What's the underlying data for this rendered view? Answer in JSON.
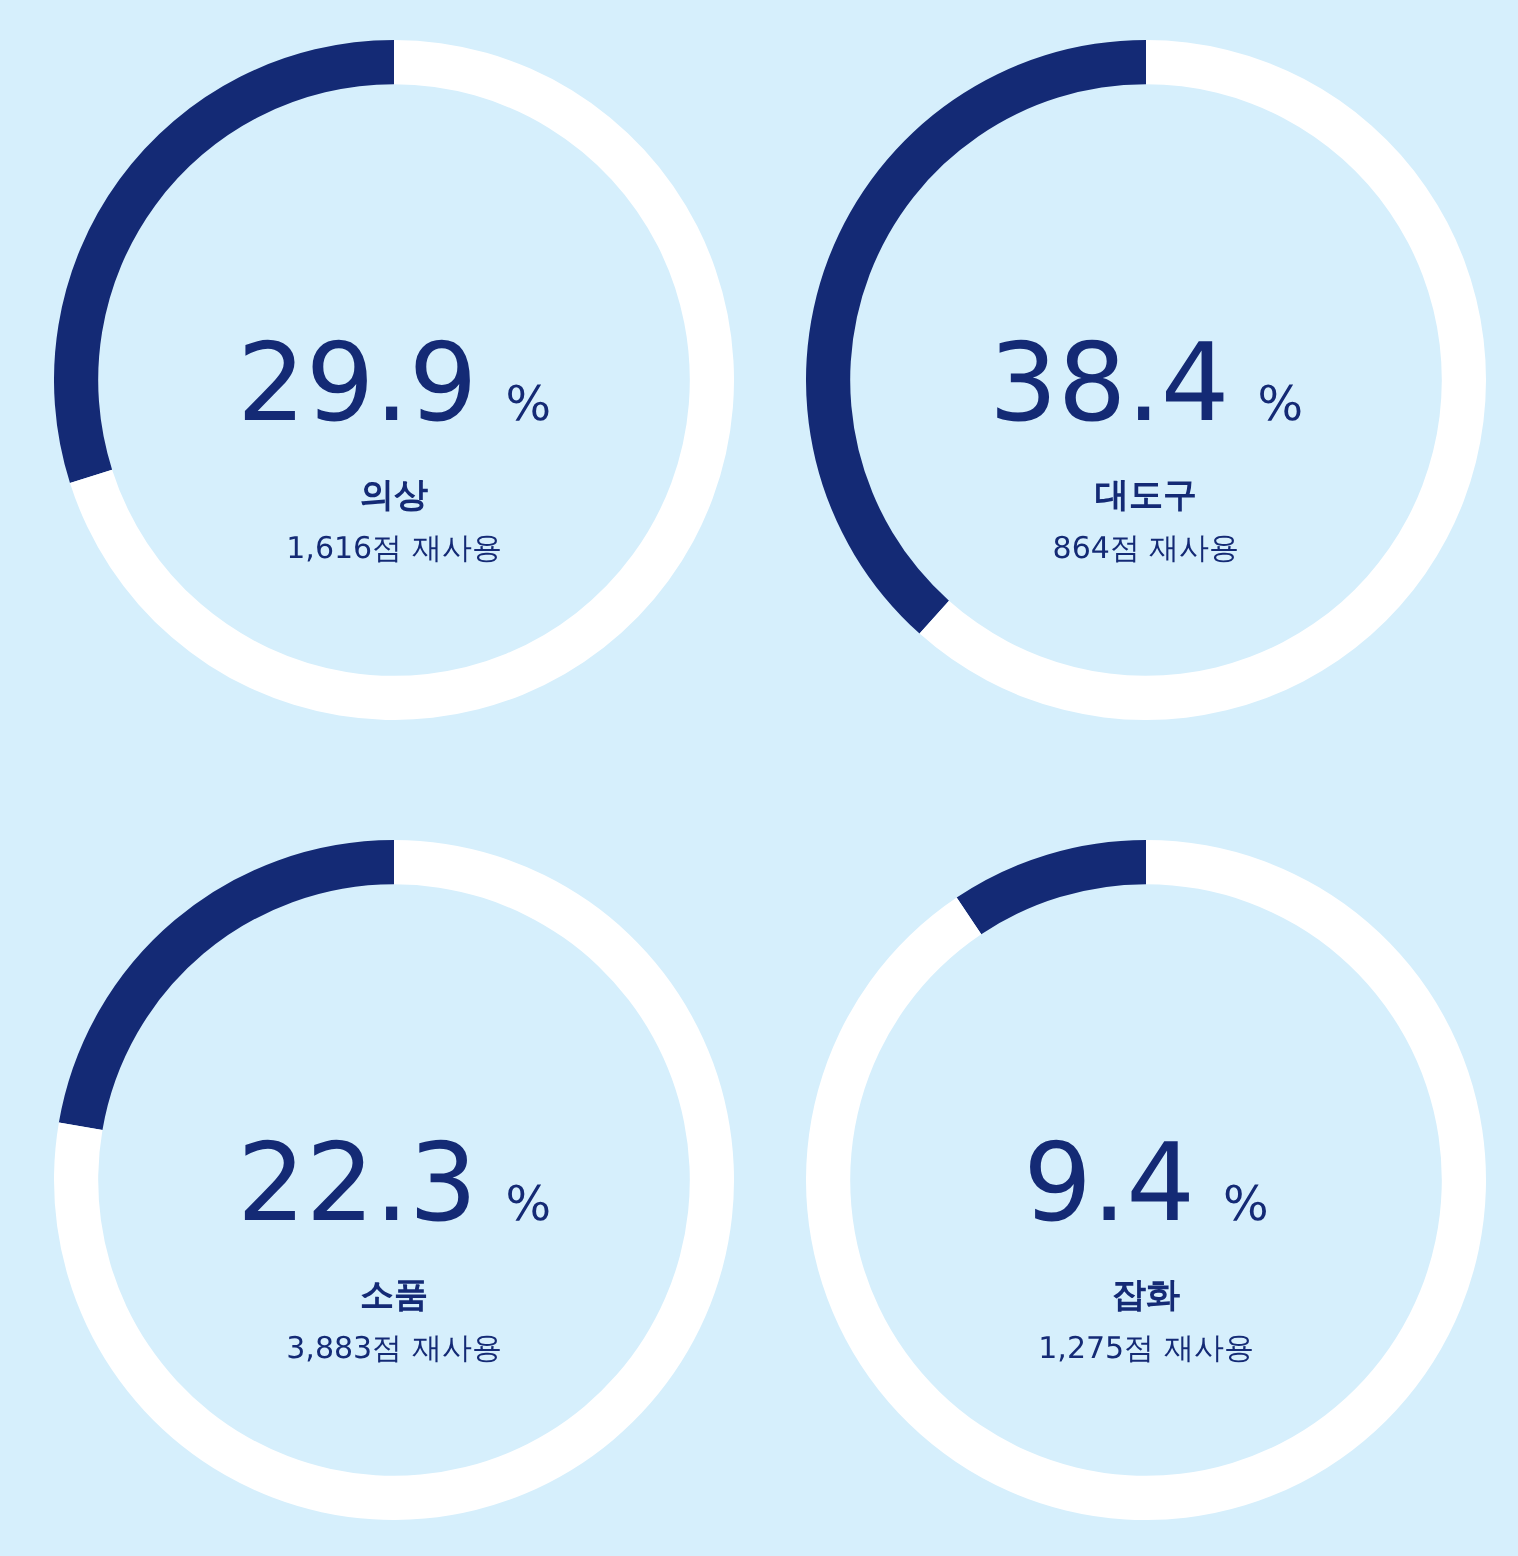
{
  "chart_data": [
    {
      "type": "donut",
      "title": "의상",
      "categories": [
        null,
        null
      ],
      "values": [
        29.9,
        70.1
      ],
      "colors": [
        "#142a75",
        "#ffffff"
      ],
      "annotations": [
        "29.9 %",
        "1,616점 재사용"
      ]
    },
    {
      "type": "donut",
      "title": "대도구",
      "categories": [
        null,
        null
      ],
      "values": [
        38.4,
        61.6
      ],
      "colors": [
        "#142a75",
        "#ffffff"
      ],
      "annotations": [
        "38.4 %",
        "864점 재사용"
      ]
    },
    {
      "type": "donut",
      "title": "소품",
      "categories": [
        null,
        null
      ],
      "values": [
        22.3,
        77.7
      ],
      "colors": [
        "#142a75",
        "#ffffff"
      ],
      "annotations": [
        "22.3 %",
        "3,883점 재사용"
      ]
    },
    {
      "type": "donut",
      "title": "잡화",
      "categories": [
        null,
        null
      ],
      "values": [
        9.4,
        90.6
      ],
      "colors": [
        "#142a75",
        "#ffffff"
      ],
      "annotations": [
        "9.4 %",
        "1,275점 재사용"
      ]
    }
  ]
}
